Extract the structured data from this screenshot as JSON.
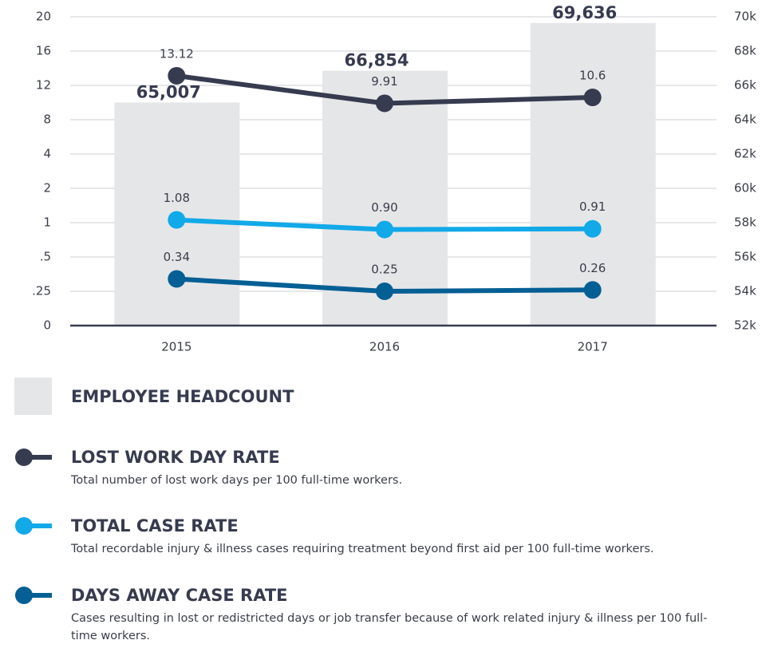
{
  "chart_data": {
    "type": "bar_line_combo",
    "categories": [
      "2015",
      "2016",
      "2017"
    ],
    "yticks": [
      0,
      {
        "value": 0.25,
        "label": ".25"
      },
      {
        "value": 0.5,
        "label": ".5"
      },
      1,
      2,
      4,
      8,
      12,
      16,
      20
    ],
    "ylim": [
      0,
      20
    ],
    "y2lim": [
      52000,
      70000
    ],
    "y2ticks": [
      {
        "value": 52000,
        "label": "52k"
      },
      {
        "value": 54000,
        "label": "54k"
      },
      {
        "value": 56000,
        "label": "56k"
      },
      {
        "value": 58000,
        "label": "58k"
      },
      {
        "value": 60000,
        "label": "60k"
      },
      {
        "value": 62000,
        "label": "62k"
      },
      {
        "value": 64000,
        "label": "64k"
      },
      {
        "value": 66000,
        "label": "66k"
      },
      {
        "value": 68000,
        "label": "68k"
      },
      {
        "value": 70000,
        "label": "70k"
      }
    ],
    "grid": true,
    "series": [
      {
        "name": "EMPLOYEE HEADCOUNT",
        "type": "bar",
        "axis": "y2",
        "color": "#e5e6e8",
        "values": [
          65007,
          66854,
          69636
        ],
        "value_labels": [
          "65,007",
          "66,854",
          "69,636"
        ]
      },
      {
        "name": "LOST WORK DAY RATE",
        "type": "line",
        "color": "#363b4f",
        "description": "Total number of lost work days per 100 full-time workers.",
        "values": [
          13.12,
          9.91,
          10.6
        ],
        "value_labels": [
          "13.12",
          "9.91",
          "10.6"
        ]
      },
      {
        "name": "TOTAL CASE RATE",
        "type": "line",
        "color": "#12a9e8",
        "description": "Total recordable injury & illness cases requiring treatment beyond first aid per 100 full-time workers.",
        "values": [
          1.08,
          0.9,
          0.91
        ],
        "value_labels": [
          "1.08",
          "0.90",
          "0.91"
        ]
      },
      {
        "name": "DAYS AWAY CASE RATE",
        "type": "line",
        "color": "#035f94",
        "description": "Cases resulting in lost or redistricted days or job transfer because of work related injury & illness per 100 full-time workers.",
        "values": [
          0.34,
          0.25,
          0.26
        ],
        "value_labels": [
          "0.34",
          "0.25",
          "0.26"
        ]
      }
    ]
  }
}
